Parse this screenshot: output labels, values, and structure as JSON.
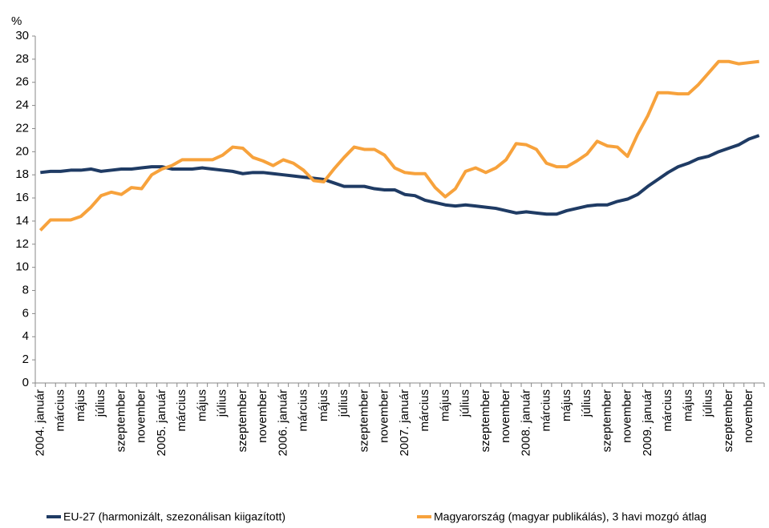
{
  "chart_data": {
    "type": "line",
    "y_label": "%",
    "categories": [
      "2004. január",
      null,
      "március",
      null,
      "május",
      null,
      "július",
      null,
      "szeptember",
      null,
      "november",
      null,
      "2005. január",
      null,
      "március",
      null,
      "május",
      null,
      "július",
      null,
      "szeptember",
      null,
      "november",
      null,
      "2006. január",
      null,
      "március",
      null,
      "május",
      null,
      "július",
      null,
      "szeptember",
      null,
      "november",
      null,
      "2007. január",
      null,
      "március",
      null,
      "május",
      null,
      "július",
      null,
      "szeptember",
      null,
      "november",
      null,
      "2008. január",
      null,
      "március",
      null,
      "május",
      null,
      "július",
      null,
      "szeptember",
      null,
      "november",
      null,
      "2009. január",
      null,
      "március",
      null,
      "május",
      null,
      "július",
      null,
      "szeptember",
      null,
      "november",
      null
    ],
    "series": [
      {
        "name": "EU-27 (harmonizált, szezonálisan kiigazított)",
        "color": "#1f3b64",
        "values": [
          18.2,
          18.3,
          18.3,
          18.4,
          18.4,
          18.5,
          18.3,
          18.4,
          18.5,
          18.5,
          18.6,
          18.7,
          18.7,
          18.5,
          18.5,
          18.5,
          18.6,
          18.5,
          18.4,
          18.3,
          18.1,
          18.2,
          18.2,
          18.1,
          18.0,
          17.9,
          17.8,
          17.7,
          17.6,
          17.3,
          17.0,
          17.0,
          17.0,
          16.8,
          16.7,
          16.7,
          16.3,
          16.2,
          15.8,
          15.6,
          15.4,
          15.3,
          15.4,
          15.3,
          15.2,
          15.1,
          14.9,
          14.7,
          14.8,
          14.7,
          14.6,
          14.6,
          14.9,
          15.1,
          15.3,
          15.4,
          15.4,
          15.7,
          15.9,
          16.3,
          17.0,
          17.6,
          18.2,
          18.7,
          19.0,
          19.4,
          19.6,
          20.0,
          20.3,
          20.6,
          21.1,
          21.4
        ]
      },
      {
        "name": "Magyarország (magyar publikálás), 3 havi mozgó átlag",
        "color": "#f7a23c",
        "values": [
          13.2,
          14.1,
          14.1,
          14.1,
          14.4,
          15.2,
          16.2,
          16.5,
          16.3,
          16.9,
          16.8,
          18.0,
          18.5,
          18.8,
          19.3,
          19.3,
          19.3,
          19.3,
          19.7,
          20.4,
          20.3,
          19.5,
          19.2,
          18.8,
          19.3,
          19.0,
          18.4,
          17.5,
          17.4,
          18.5,
          19.5,
          20.4,
          20.2,
          20.2,
          19.7,
          18.6,
          18.2,
          18.1,
          18.1,
          16.9,
          16.1,
          16.8,
          18.3,
          18.6,
          18.2,
          18.6,
          19.3,
          20.7,
          20.6,
          20.2,
          19.0,
          18.7,
          18.7,
          19.2,
          19.8,
          20.9,
          20.5,
          20.4,
          19.6,
          21.5,
          23.1,
          25.1,
          25.1,
          25.0,
          25.0,
          25.8,
          26.8,
          27.8,
          27.8,
          27.6,
          27.7,
          27.8
        ]
      }
    ],
    "ylim": [
      0,
      30
    ],
    "yticks": [
      0,
      2,
      4,
      6,
      8,
      10,
      12,
      14,
      16,
      18,
      20,
      22,
      24,
      26,
      28,
      30
    ],
    "grid": false
  }
}
